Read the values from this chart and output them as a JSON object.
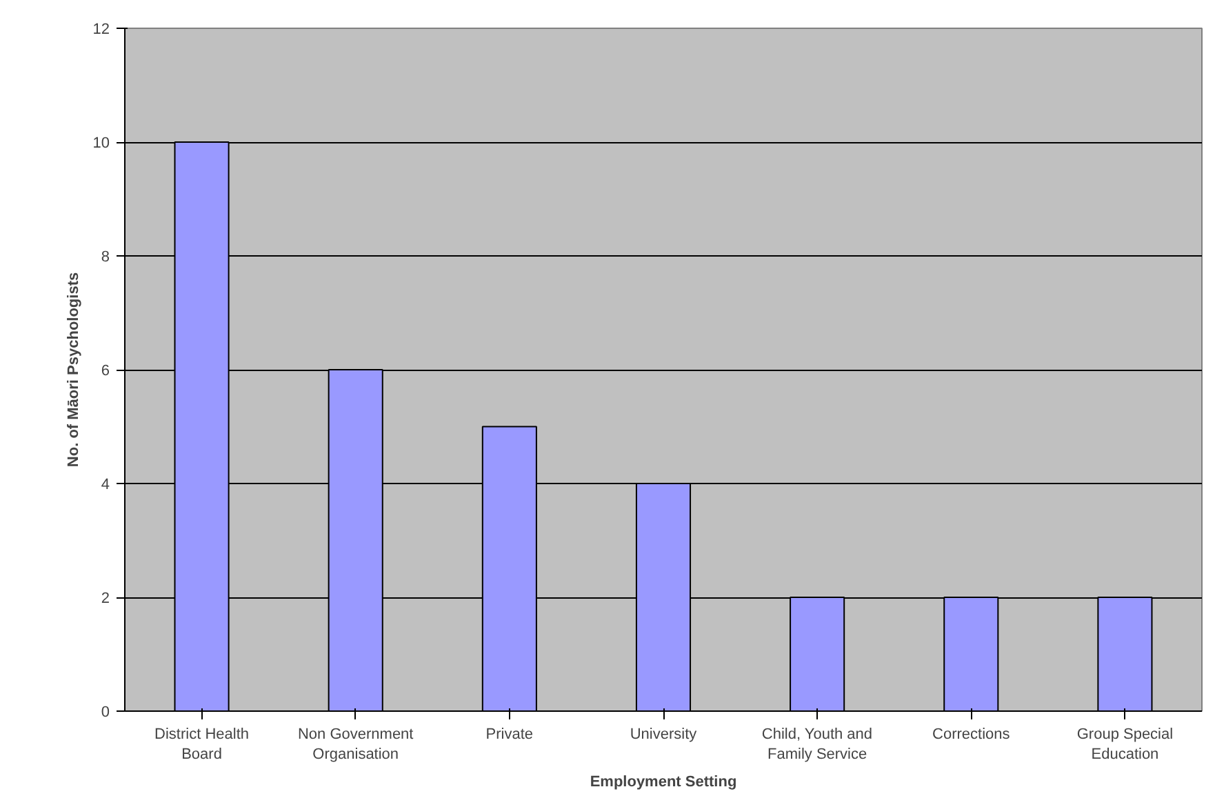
{
  "chart_data": {
    "type": "bar",
    "xlabel": "Employment Setting",
    "ylabel": "No. of Māori Psychologists",
    "categories": [
      "District Health Board",
      "Non Government Organisation",
      "Private",
      "University",
      "Child, Youth and Family Service",
      "Corrections",
      "Group Special Education"
    ],
    "values": [
      10,
      6,
      5,
      4,
      2,
      2,
      2
    ],
    "color": "#9999ff",
    "ylim": [
      0,
      12
    ],
    "yticks": [
      0,
      2,
      4,
      6,
      8,
      10,
      12
    ],
    "grid": "y"
  }
}
